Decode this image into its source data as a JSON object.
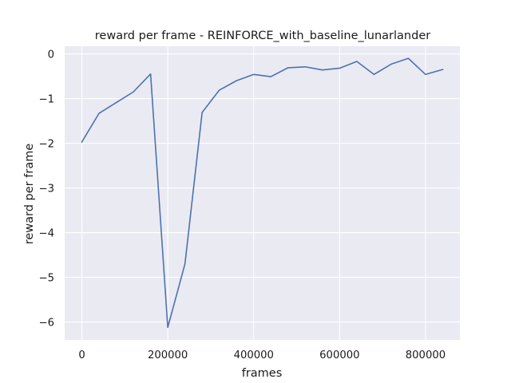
{
  "chart_data": {
    "type": "line",
    "title": "reward per frame - REINFORCE_with_baseline_lunarlander",
    "xlabel": "frames",
    "ylabel": "reward per frame",
    "xlim": [
      -40000,
      880000
    ],
    "ylim": [
      -6.4,
      0.17
    ],
    "xticks": [
      0,
      200000,
      400000,
      600000,
      800000
    ],
    "xtick_labels": [
      "0",
      "200000",
      "400000",
      "600000",
      "800000"
    ],
    "yticks": [
      0,
      -1,
      -2,
      -3,
      -4,
      -5,
      -6
    ],
    "ytick_labels": [
      "0",
      "−1",
      "−2",
      "−3",
      "−4",
      "−5",
      "−6"
    ],
    "grid": true,
    "style": {
      "background": "#eaeaf2",
      "grid_color": "#ffffff",
      "line_color": "#4c72b0"
    },
    "series": [
      {
        "x": [
          0,
          40000,
          80000,
          120000,
          160000,
          200000,
          240000,
          280000,
          320000,
          360000,
          400000,
          440000,
          480000,
          520000,
          560000,
          600000,
          640000,
          680000,
          720000,
          760000,
          800000,
          840000
        ],
        "y": [
          -1.97,
          -1.33,
          -1.09,
          -0.85,
          -0.45,
          -6.12,
          -4.7,
          -1.31,
          -0.81,
          -0.6,
          -0.46,
          -0.51,
          -0.31,
          -0.29,
          -0.36,
          -0.32,
          -0.17,
          -0.46,
          -0.23,
          -0.1,
          -0.46,
          -0.35
        ]
      }
    ]
  }
}
